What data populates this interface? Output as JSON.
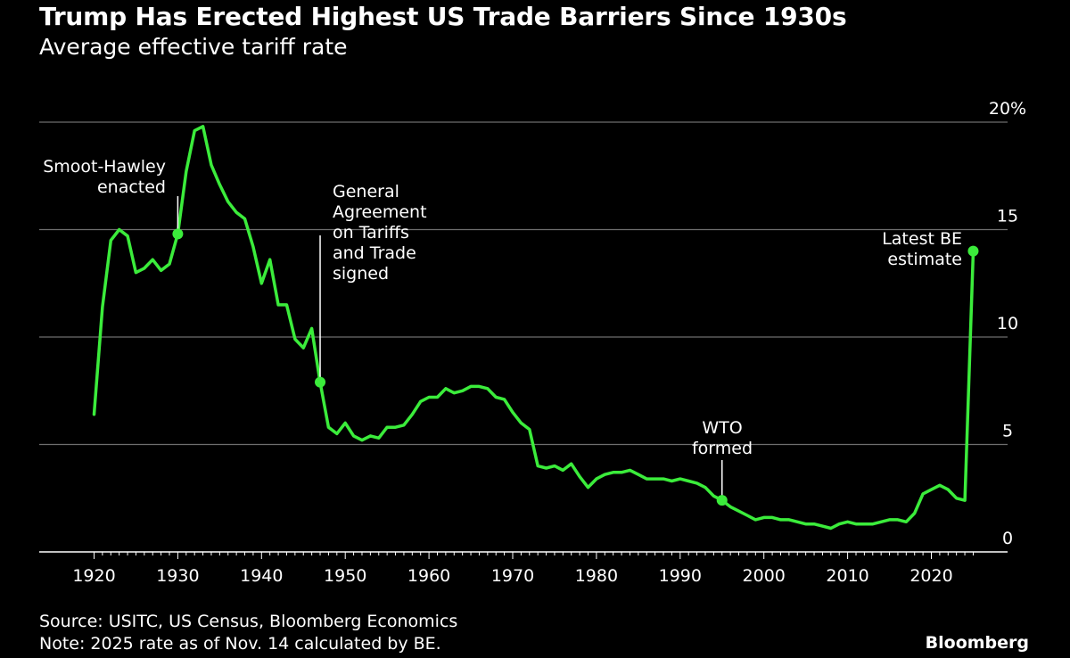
{
  "header": {
    "title": "Trump Has Erected Highest US Trade Barriers Since 1930s",
    "subtitle": "Average effective tariff rate"
  },
  "footer": {
    "source": "Source: USITC, US Census, Bloomberg Economics",
    "note": "Note: 2025 rate as of Nov. 14 calculated by BE.",
    "brand": "Bloomberg"
  },
  "colors": {
    "background": "#000000",
    "line": "#3bec3b",
    "grid": "#6e6e6e",
    "text": "#ffffff"
  },
  "chart_data": {
    "type": "line",
    "title": "Trump Has Erected Highest US Trade Barriers Since 1930s",
    "subtitle": "Average effective tariff rate",
    "xlabel": "",
    "ylabel": "",
    "xlim": [
      1916,
      2030
    ],
    "ylim": [
      0,
      20
    ],
    "grid": true,
    "x_ticks": [
      1920,
      1930,
      1940,
      1950,
      1960,
      1970,
      1980,
      1990,
      2000,
      2010,
      2020
    ],
    "y_ticks": [
      {
        "value": 0,
        "label": "0"
      },
      {
        "value": 5,
        "label": "5"
      },
      {
        "value": 10,
        "label": "10"
      },
      {
        "value": 15,
        "label": "15"
      },
      {
        "value": 20,
        "label": "20%"
      }
    ],
    "series": [
      {
        "name": "Average effective tariff rate",
        "x": [
          1920,
          1921,
          1922,
          1923,
          1924,
          1925,
          1926,
          1927,
          1928,
          1929,
          1930,
          1931,
          1932,
          1933,
          1934,
          1935,
          1936,
          1937,
          1938,
          1939,
          1940,
          1941,
          1942,
          1943,
          1944,
          1945,
          1946,
          1947,
          1948,
          1949,
          1950,
          1951,
          1952,
          1953,
          1954,
          1955,
          1956,
          1957,
          1958,
          1959,
          1960,
          1961,
          1962,
          1963,
          1964,
          1965,
          1966,
          1967,
          1968,
          1969,
          1970,
          1971,
          1972,
          1973,
          1974,
          1975,
          1976,
          1977,
          1978,
          1979,
          1980,
          1981,
          1982,
          1983,
          1984,
          1985,
          1986,
          1987,
          1988,
          1989,
          1990,
          1991,
          1992,
          1993,
          1994,
          1995,
          1996,
          1997,
          1998,
          1999,
          2000,
          2001,
          2002,
          2003,
          2004,
          2005,
          2006,
          2007,
          2008,
          2009,
          2010,
          2011,
          2012,
          2013,
          2014,
          2015,
          2016,
          2017,
          2018,
          2019,
          2020,
          2021,
          2022,
          2023,
          2024,
          2025
        ],
        "y": [
          6.4,
          11.4,
          14.5,
          15.0,
          14.7,
          13.0,
          13.2,
          13.6,
          13.1,
          13.4,
          14.8,
          17.7,
          19.6,
          19.8,
          18.0,
          17.1,
          16.3,
          15.8,
          15.5,
          14.2,
          12.5,
          13.6,
          11.5,
          11.5,
          9.9,
          9.5,
          10.4,
          7.9,
          5.8,
          5.5,
          6.0,
          5.4,
          5.2,
          5.4,
          5.3,
          5.8,
          5.8,
          5.9,
          6.4,
          7.0,
          7.2,
          7.2,
          7.6,
          7.4,
          7.5,
          7.7,
          7.7,
          7.6,
          7.2,
          7.1,
          6.5,
          6.0,
          5.7,
          4.0,
          3.9,
          4.0,
          3.8,
          4.1,
          3.5,
          3.0,
          3.4,
          3.6,
          3.7,
          3.7,
          3.8,
          3.6,
          3.4,
          3.4,
          3.4,
          3.3,
          3.4,
          3.3,
          3.2,
          3.0,
          2.6,
          2.4,
          2.1,
          1.9,
          1.7,
          1.5,
          1.6,
          1.6,
          1.5,
          1.5,
          1.4,
          1.3,
          1.3,
          1.2,
          1.1,
          1.3,
          1.4,
          1.3,
          1.3,
          1.3,
          1.4,
          1.5,
          1.5,
          1.4,
          1.8,
          2.7,
          2.9,
          3.1,
          2.9,
          2.5,
          2.4,
          14.0
        ]
      }
    ],
    "annotations": [
      {
        "x": 1930,
        "y": 14.8,
        "label": [
          "Smoot-Hawley",
          "enacted"
        ]
      },
      {
        "x": 1947,
        "y": 7.9,
        "label": [
          "General",
          "Agreement",
          "on Tariffs",
          "and Trade",
          "signed"
        ]
      },
      {
        "x": 1995,
        "y": 2.4,
        "label": [
          "WTO",
          "formed"
        ]
      },
      {
        "x": 2025,
        "y": 14.0,
        "label": [
          "Latest BE",
          "estimate"
        ]
      }
    ]
  }
}
